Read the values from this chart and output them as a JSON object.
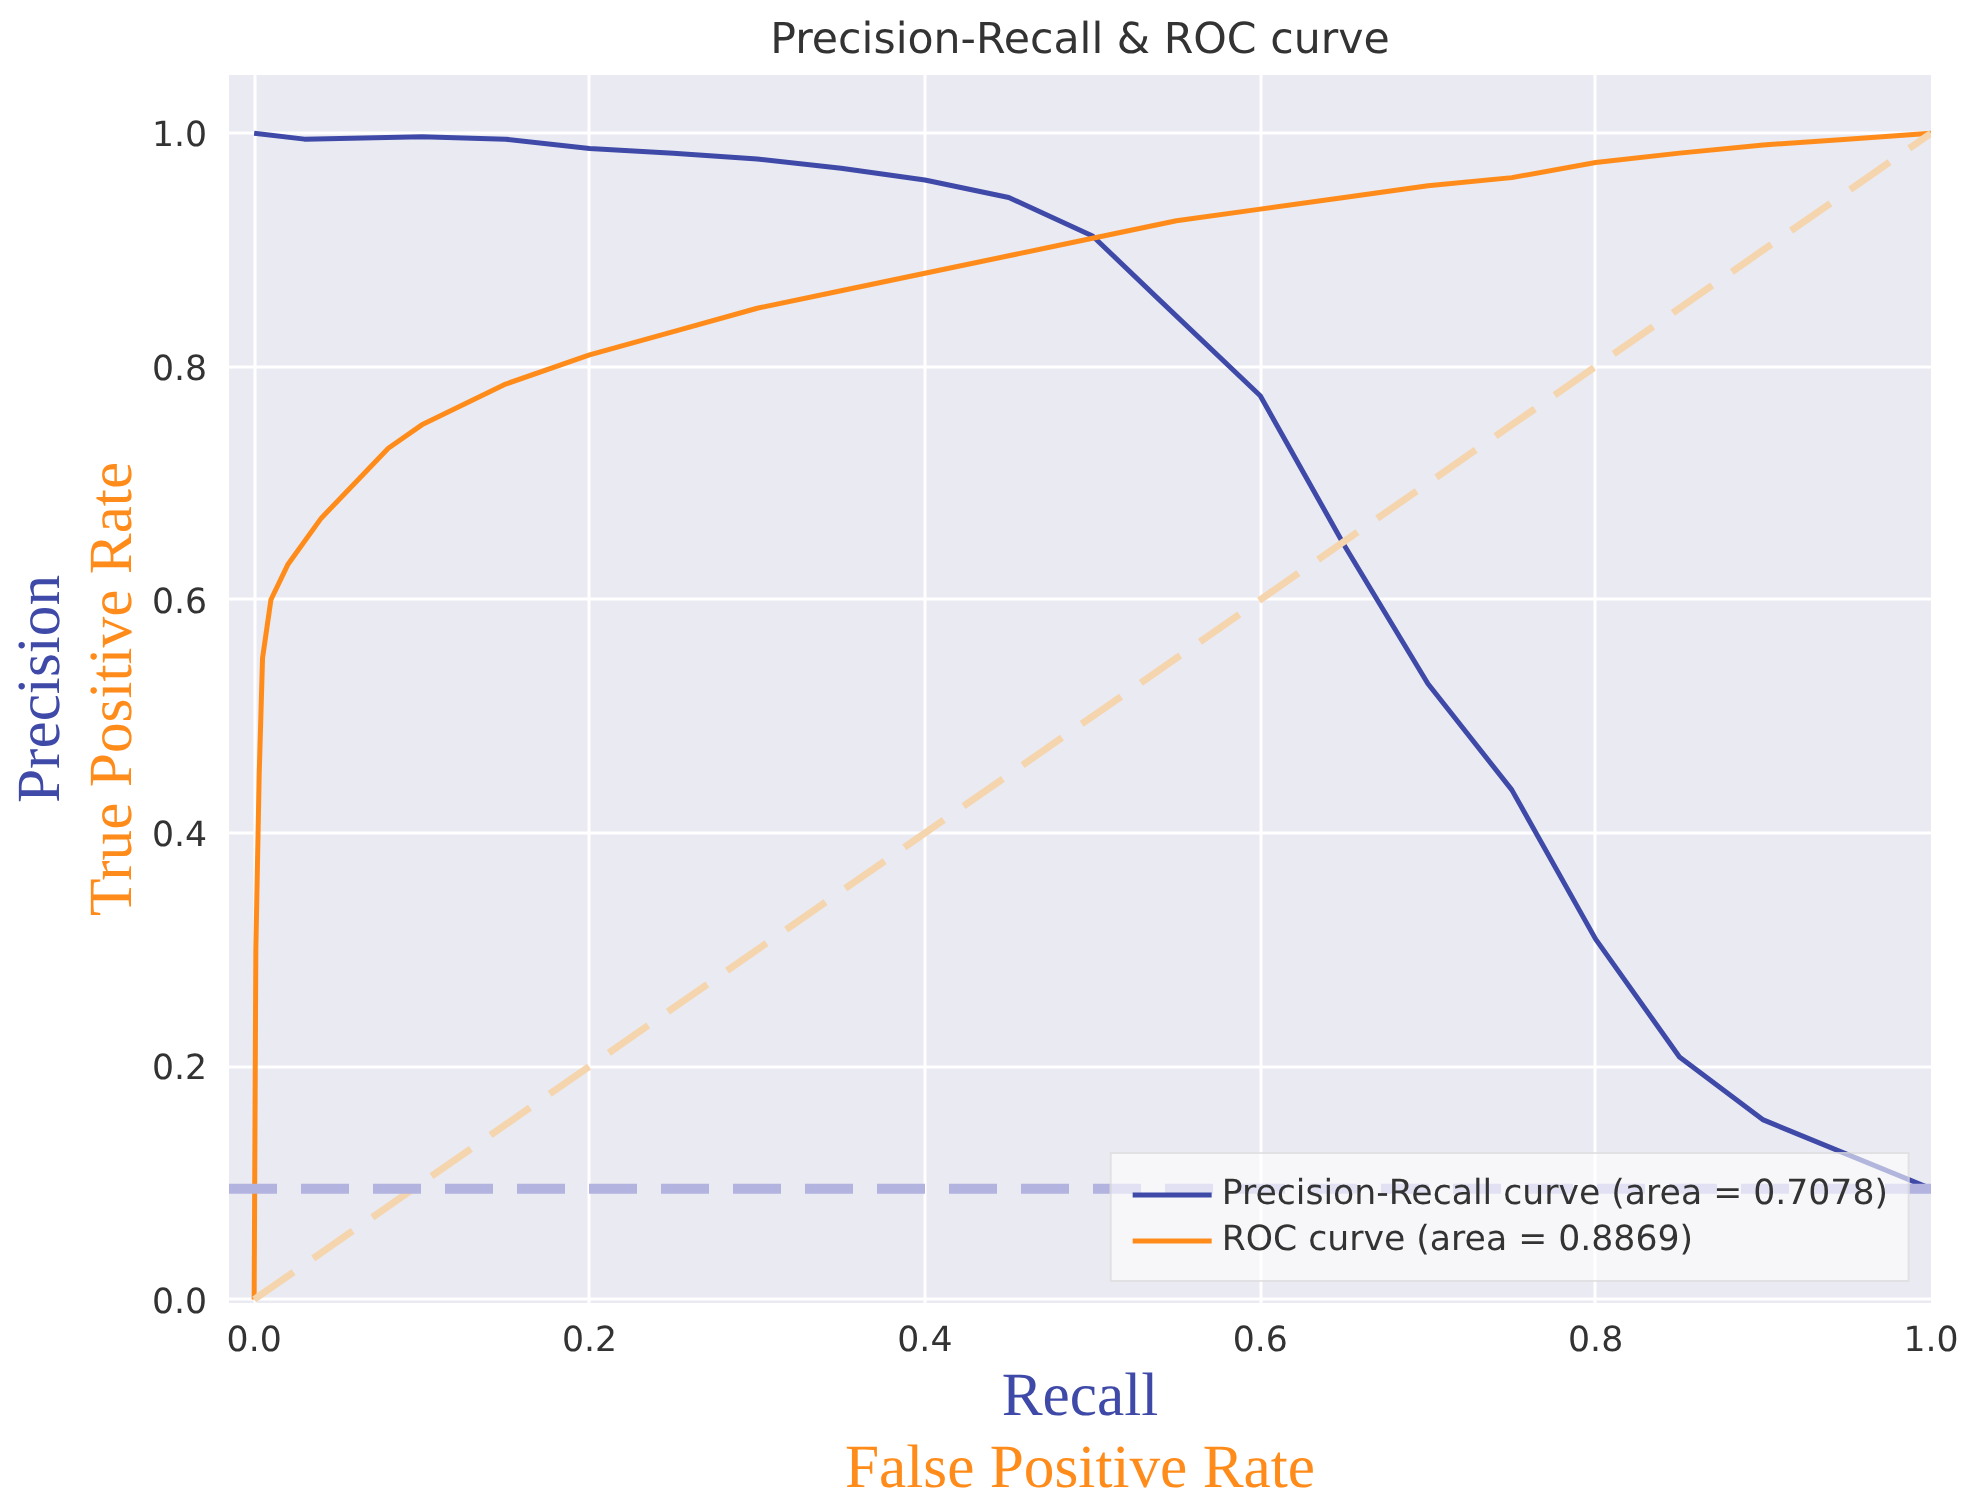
{
  "chart_data": {
    "type": "line",
    "title": "Precision-Recall & ROC curve",
    "xlabel": "Recall\nFalse Positive Rate",
    "ylabel": "True Positive Rate\nPrecision",
    "xlim": [
      -0.015,
      1.0
    ],
    "ylim": [
      -0.003,
      1.05
    ],
    "xticks": [
      {
        "value": 0,
        "label": "0.0"
      },
      0.2,
      0.4,
      0.6,
      0.8,
      {
        "value": 1,
        "label": "1.0"
      }
    ],
    "yticks": [
      {
        "value": 0,
        "label": "0.0"
      },
      0.2,
      0.4,
      0.6,
      0.8,
      {
        "value": 1,
        "label": "1.0"
      }
    ],
    "grid": true,
    "legend": "bottom right",
    "series": [
      {
        "name": "Precision-Recall curve (area = 0.7078)",
        "color": "#3f4aa8",
        "x": [
          0,
          0.03,
          0.1,
          0.15,
          0.2,
          0.25,
          0.3,
          0.35,
          0.4,
          0.45,
          0.5,
          0.54,
          0.6,
          0.65,
          0.7,
          0.75,
          0.8,
          0.85,
          0.9,
          1.0
        ],
        "values": [
          1.0,
          0.995,
          0.997,
          0.995,
          0.987,
          0.983,
          0.978,
          0.97,
          0.96,
          0.945,
          0.912,
          0.857,
          0.775,
          0.647,
          0.528,
          0.437,
          0.309,
          0.208,
          0.154,
          0.095
        ]
      },
      {
        "name": "ROC curve (area = 0.8869)",
        "color": "#ff8c1a",
        "x": [
          0,
          0.001,
          0.003,
          0.005,
          0.01,
          0.02,
          0.04,
          0.06,
          0.08,
          0.1,
          0.15,
          0.2,
          0.25,
          0.3,
          0.35,
          0.4,
          0.45,
          0.5,
          0.55,
          0.6,
          0.65,
          0.7,
          0.75,
          0.8,
          0.85,
          0.9,
          0.95,
          1.0
        ],
        "values": [
          0,
          0.3,
          0.45,
          0.55,
          0.6,
          0.63,
          0.67,
          0.7,
          0.73,
          0.75,
          0.785,
          0.81,
          0.83,
          0.85,
          0.865,
          0.88,
          0.895,
          0.91,
          0.925,
          0.935,
          0.945,
          0.955,
          0.962,
          0.975,
          0.983,
          0.99,
          0.995,
          1.0
        ]
      },
      {
        "color": "#f5d5ae",
        "line_style": "dashed",
        "x": [
          0,
          1
        ],
        "values": [
          0,
          1
        ]
      }
    ],
    "ref_lines": [
      {
        "axis": "y",
        "value": 0.095,
        "color": "#b3b3e0",
        "line_style": "dashed"
      }
    ]
  }
}
